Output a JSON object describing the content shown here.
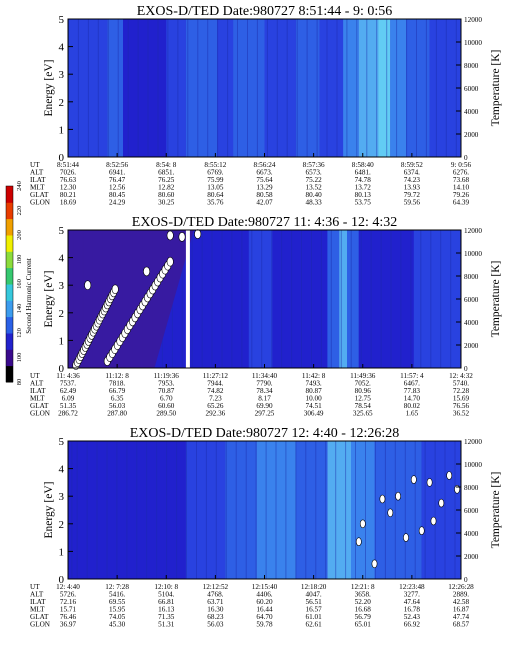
{
  "chart_data": [
    {
      "type": "heatmap",
      "title": "EXOS-D/TED",
      "date_label": "Date:980727",
      "time_range": "8:51:44 - 9: 0:56",
      "ylabel": "Energy [eV]",
      "ylabel2": "Temperature [K]",
      "yticks": [
        "0",
        "1",
        "2",
        "3",
        "4",
        "5"
      ],
      "y2ticks": [
        "0",
        "2000",
        "4000",
        "6000",
        "8000",
        "10000",
        "12000"
      ],
      "ylim": [
        0,
        5
      ],
      "y2lim": [
        0,
        12000
      ],
      "row_labels": [
        "UT",
        "ALT",
        "ILAT",
        "MLT",
        "GLAT",
        "GLON"
      ],
      "columns": [
        [
          "8:51:44",
          "7026.",
          "76.63",
          "12.30",
          "80.21",
          "18.69"
        ],
        [
          "8:52:56",
          "6941.",
          "76.47",
          "12.56",
          "80.45",
          "24.29"
        ],
        [
          "8:54: 8",
          "6851.",
          "76.25",
          "12.82",
          "80.60",
          "30.25"
        ],
        [
          "8:55:12",
          "6769.",
          "75.99",
          "13.05",
          "80.64",
          "35.76"
        ],
        [
          "8:56:24",
          "6673.",
          "75.64",
          "13.29",
          "80.58",
          "42.07"
        ],
        [
          "8:57:36",
          "6573.",
          "75.22",
          "13.52",
          "80.40",
          "48.33"
        ],
        [
          "8:58:40",
          "6481.",
          "74.78",
          "13.72",
          "80.13",
          "53.75"
        ],
        [
          "8:59:52",
          "6374.",
          "74.23",
          "13.93",
          "79.72",
          "59.56"
        ],
        [
          "9: 0:56",
          "6276.",
          "73.68",
          "14.10",
          "79.26",
          "64.39"
        ]
      ]
    },
    {
      "type": "heatmap",
      "title": "EXOS-D/TED",
      "date_label": "Date:980727",
      "time_range": "11: 4:36 - 12: 4:32",
      "ylabel": "Energy [eV]",
      "ylabel2": "Temperature [K]",
      "yticks": [
        "0",
        "1",
        "2",
        "3",
        "4",
        "5"
      ],
      "y2ticks": [
        "0",
        "2000",
        "4000",
        "6000",
        "8000",
        "10000",
        "12000"
      ],
      "ylim": [
        0,
        5
      ],
      "y2lim": [
        0,
        12000
      ],
      "row_labels": [
        "UT",
        "ALT",
        "ILAT",
        "MLT",
        "GLAT",
        "GLON"
      ],
      "columns": [
        [
          "11: 4:36",
          "7537.",
          "62.49",
          "6.09",
          "51.35",
          "286.72"
        ],
        [
          "11:12: 8",
          "7818.",
          "66.79",
          "6.35",
          "56.03",
          "287.80"
        ],
        [
          "11:19:36",
          "7953.",
          "70.87",
          "6.70",
          "60.60",
          "289.50"
        ],
        [
          "11:27:12",
          "7944.",
          "74.82",
          "7.23",
          "65.26",
          "292.36"
        ],
        [
          "11:34:40",
          "7790.",
          "78.34",
          "8.17",
          "69.90",
          "297.25"
        ],
        [
          "11:42: 8",
          "7493.",
          "80.87",
          "10.00",
          "74.51",
          "306.49"
        ],
        [
          "11:49:36",
          "7052.",
          "80.96",
          "12.75",
          "78.54",
          "325.65"
        ],
        [
          "11:57: 4",
          "6467.",
          "77.83",
          "14.70",
          "80.02",
          "1.65"
        ],
        [
          "12: 4:32",
          "5740.",
          "72.28",
          "15.69",
          "76.56",
          "36.52"
        ]
      ],
      "colorbar": {
        "label": "Second Harmonic Current",
        "ticks": [
          "80",
          "100",
          "120",
          "140",
          "160",
          "180",
          "200",
          "220",
          "240"
        ]
      }
    },
    {
      "type": "heatmap",
      "title": "EXOS-D/TED",
      "date_label": "Date:980727",
      "time_range": "12: 4:40 - 12:26:28",
      "ylabel": "Energy [eV]",
      "ylabel2": "Temperature [K]",
      "yticks": [
        "0",
        "1",
        "2",
        "3",
        "4",
        "5"
      ],
      "y2ticks": [
        "0",
        "2000",
        "4000",
        "6000",
        "8000",
        "10000",
        "12000"
      ],
      "ylim": [
        0,
        5
      ],
      "y2lim": [
        0,
        12000
      ],
      "row_labels": [
        "UT",
        "ALT",
        "ILAT",
        "MLT",
        "GLAT",
        "GLON"
      ],
      "columns": [
        [
          "12: 4:40",
          "5726.",
          "72.16",
          "15.71",
          "76.46",
          "36.97"
        ],
        [
          "12: 7:28",
          "5416.",
          "69.55",
          "15.95",
          "74.05",
          "45.30"
        ],
        [
          "12:10: 8",
          "5104.",
          "66.81",
          "16.13",
          "71.35",
          "51.31"
        ],
        [
          "12:12:52",
          "4768.",
          "63.71",
          "16.30",
          "68.23",
          "56.03"
        ],
        [
          "12:15:40",
          "4406.",
          "60.20",
          "16.44",
          "64.70",
          "59.78"
        ],
        [
          "12:18:20",
          "4047.",
          "56.51",
          "16.57",
          "61.01",
          "62.61"
        ],
        [
          "12:21: 8",
          "3658.",
          "52.20",
          "16.68",
          "56.79",
          "65.01"
        ],
        [
          "12:23:48",
          "3277.",
          "47.64",
          "16.78",
          "52.43",
          "66.92"
        ],
        [
          "12:26:28",
          "2889.",
          "42.58",
          "16.87",
          "47.74",
          "68.57"
        ]
      ]
    }
  ]
}
